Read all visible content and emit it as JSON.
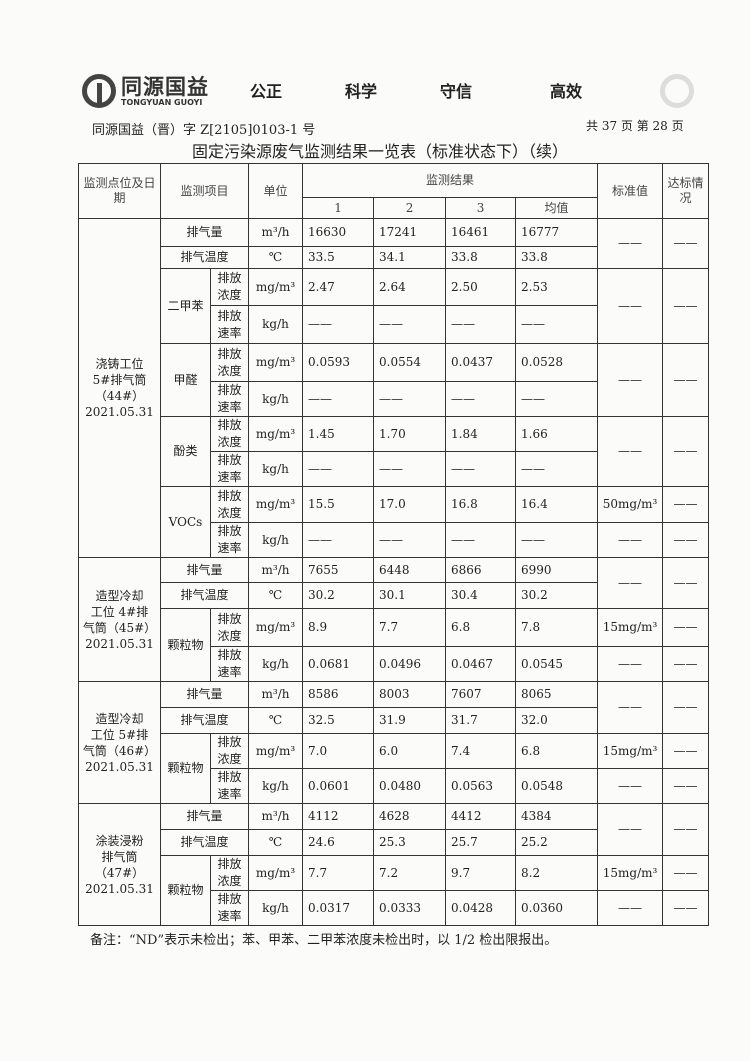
{
  "header": {
    "logo_cn": "同源国益",
    "logo_en": "TONGYUAN GUOYI",
    "motto": [
      "公正",
      "科学",
      "守信",
      "高效"
    ],
    "doc_number": "同源国益（晋）字 Z[2105]0103-1 号",
    "pages": "共 37 页  第 28 页"
  },
  "title": "固定污染源废气监测结果一览表（标准状态下）（续）",
  "table": {
    "headers": {
      "site": "监测点位及日期",
      "item": "监测项目",
      "unit": "单位",
      "results": "监测结果",
      "runs": [
        "1",
        "2",
        "3",
        "均值"
      ],
      "standard": "标准值",
      "compliance": "达标情况"
    },
    "groups": [
      {
        "site": "浇铸工位\n5#排气筒\n（44#）\n2021.05.31",
        "flow": {
          "item": "排气量",
          "unit": "m³/h",
          "values": [
            "16630",
            "17241",
            "16461",
            "16777"
          ]
        },
        "temp": {
          "item": "排气温度",
          "unit": "℃",
          "values": [
            "33.5",
            "34.1",
            "33.8",
            "33.8"
          ]
        },
        "exhaust_standard": "——",
        "exhaust_compliance": "——",
        "pollutants": [
          {
            "name": "二甲苯",
            "standard": "——",
            "compliance": "——",
            "subs": [
              {
                "label": "排放浓度",
                "unit": "mg/m³",
                "values": [
                  "2.47",
                  "2.64",
                  "2.50",
                  "2.53"
                ]
              },
              {
                "label": "排放速率",
                "unit": "kg/h",
                "values": [
                  "——",
                  "——",
                  "——",
                  "——"
                ]
              }
            ]
          },
          {
            "name": "甲醛",
            "standard": "——",
            "compliance": "——",
            "subs": [
              {
                "label": "排放浓度",
                "unit": "mg/m³",
                "values": [
                  "0.0593",
                  "0.0554",
                  "0.0437",
                  "0.0528"
                ]
              },
              {
                "label": "排放速率",
                "unit": "kg/h",
                "values": [
                  "——",
                  "——",
                  "——",
                  "——"
                ]
              }
            ]
          },
          {
            "name": "酚类",
            "standard": "——",
            "compliance": "——",
            "subs": [
              {
                "label": "排放浓度",
                "unit": "mg/m³",
                "values": [
                  "1.45",
                  "1.70",
                  "1.84",
                  "1.66"
                ]
              },
              {
                "label": "排放速率",
                "unit": "kg/h",
                "values": [
                  "——",
                  "——",
                  "——",
                  "——"
                ]
              }
            ]
          },
          {
            "name": "VOCs",
            "subs": [
              {
                "label": "排放浓度",
                "unit": "mg/m³",
                "values": [
                  "15.5",
                  "17.0",
                  "16.8",
                  "16.4"
                ],
                "standard": "50mg/m³",
                "compliance": "——"
              },
              {
                "label": "排放速率",
                "unit": "kg/h",
                "values": [
                  "——",
                  "——",
                  "——",
                  "——"
                ],
                "standard": "——",
                "compliance": "——"
              }
            ]
          }
        ]
      },
      {
        "site": "造型冷却\n工位 4#排\n气筒（45#）\n2021.05.31",
        "flow": {
          "item": "排气量",
          "unit": "m³/h",
          "values": [
            "7655",
            "6448",
            "6866",
            "6990"
          ]
        },
        "temp": {
          "item": "排气温度",
          "unit": "℃",
          "values": [
            "30.2",
            "30.1",
            "30.4",
            "30.2"
          ]
        },
        "exhaust_standard": "——",
        "exhaust_compliance": "——",
        "pollutants": [
          {
            "name": "颗粒物",
            "subs": [
              {
                "label": "排放浓度",
                "unit": "mg/m³",
                "values": [
                  "8.9",
                  "7.7",
                  "6.8",
                  "7.8"
                ],
                "standard": "15mg/m³",
                "compliance": "——"
              },
              {
                "label": "排放速率",
                "unit": "kg/h",
                "values": [
                  "0.0681",
                  "0.0496",
                  "0.0467",
                  "0.0545"
                ],
                "standard": "——",
                "compliance": "——"
              }
            ]
          }
        ]
      },
      {
        "site": "造型冷却\n工位 5#排\n气筒（46#）\n2021.05.31",
        "flow": {
          "item": "排气量",
          "unit": "m³/h",
          "values": [
            "8586",
            "8003",
            "7607",
            "8065"
          ]
        },
        "temp": {
          "item": "排气温度",
          "unit": "℃",
          "values": [
            "32.5",
            "31.9",
            "31.7",
            "32.0"
          ]
        },
        "exhaust_standard": "——",
        "exhaust_compliance": "——",
        "pollutants": [
          {
            "name": "颗粒物",
            "subs": [
              {
                "label": "排放浓度",
                "unit": "mg/m³",
                "values": [
                  "7.0",
                  "6.0",
                  "7.4",
                  "6.8"
                ],
                "standard": "15mg/m³",
                "compliance": "——"
              },
              {
                "label": "排放速率",
                "unit": "kg/h",
                "values": [
                  "0.0601",
                  "0.0480",
                  "0.0563",
                  "0.0548"
                ],
                "standard": "——",
                "compliance": "——"
              }
            ]
          }
        ]
      },
      {
        "site": "涂装浸粉\n排气筒\n（47#）\n2021.05.31",
        "flow": {
          "item": "排气量",
          "unit": "m³/h",
          "values": [
            "4112",
            "4628",
            "4412",
            "4384"
          ]
        },
        "temp": {
          "item": "排气温度",
          "unit": "℃",
          "values": [
            "24.6",
            "25.3",
            "25.7",
            "25.2"
          ]
        },
        "exhaust_standard": "——",
        "exhaust_compliance": "——",
        "pollutants": [
          {
            "name": "颗粒物",
            "subs": [
              {
                "label": "排放浓度",
                "unit": "mg/m³",
                "values": [
                  "7.7",
                  "7.2",
                  "9.7",
                  "8.2"
                ],
                "standard": "15mg/m³",
                "compliance": "——"
              },
              {
                "label": "排放速率",
                "unit": "kg/h",
                "values": [
                  "0.0317",
                  "0.0333",
                  "0.0428",
                  "0.0360"
                ],
                "standard": "——",
                "compliance": "——"
              }
            ]
          }
        ]
      }
    ]
  },
  "note": "备注：“ND”表示未检出；苯、甲苯、二甲苯浓度未检出时，以 1/2 检出限报出。"
}
